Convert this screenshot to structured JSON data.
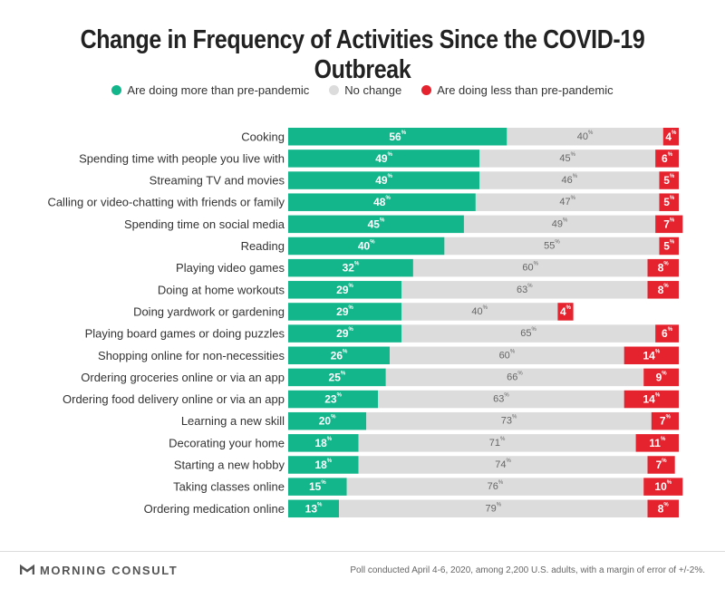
{
  "title": "Change in Frequency of Activities Since the COVID-19 Outbreak",
  "legend": [
    {
      "label": "Are doing more than pre-pandemic",
      "color": "#13b58a"
    },
    {
      "label": "No change",
      "color": "#dcdcdc"
    },
    {
      "label": "Are doing less than pre-pandemic",
      "color": "#e5232f"
    }
  ],
  "chart_data": {
    "type": "bar",
    "orientation": "horizontal-stacked",
    "title": "Change in Frequency of Activities Since the COVID-19 Outbreak",
    "unit": "%",
    "categories": [
      "Cooking",
      "Spending time with people you live with",
      "Streaming TV and movies",
      "Calling or video-chatting with friends or family",
      "Spending time on social media",
      "Reading",
      "Playing video games",
      "Doing at home workouts",
      "Doing yardwork or gardening",
      "Playing board games or doing puzzles",
      "Shopping online for non-necessities",
      "Ordering groceries online or via an app",
      "Ordering food delivery online or via an app",
      "Learning a new skill",
      "Decorating your home",
      "Starting a new hobby",
      "Taking classes online",
      "Ordering medication online"
    ],
    "series": [
      {
        "name": "Are doing more than pre-pandemic",
        "color": "#13b58a",
        "label_color": "#ffffff",
        "values": [
          56,
          49,
          49,
          48,
          45,
          40,
          32,
          29,
          29,
          29,
          26,
          25,
          23,
          20,
          18,
          18,
          15,
          13
        ]
      },
      {
        "name": "No change",
        "color": "#dcdcdc",
        "label_color": "#666666",
        "values": [
          40,
          45,
          46,
          47,
          49,
          55,
          60,
          63,
          40,
          65,
          60,
          66,
          63,
          73,
          71,
          74,
          76,
          79
        ]
      },
      {
        "name": "Are doing less than pre-pandemic",
        "color": "#e5232f",
        "label_color": "#ffffff",
        "values": [
          4,
          6,
          5,
          5,
          7,
          5,
          8,
          8,
          4,
          6,
          14,
          9,
          14,
          7,
          11,
          7,
          10,
          8
        ]
      }
    ],
    "xlim": [
      0,
      100
    ]
  },
  "footer": {
    "brand": "MORNING CONSULT",
    "note": "Poll conducted April 4-6, 2020, among 2,200 U.S. adults, with a margin of error of +/-2%."
  }
}
